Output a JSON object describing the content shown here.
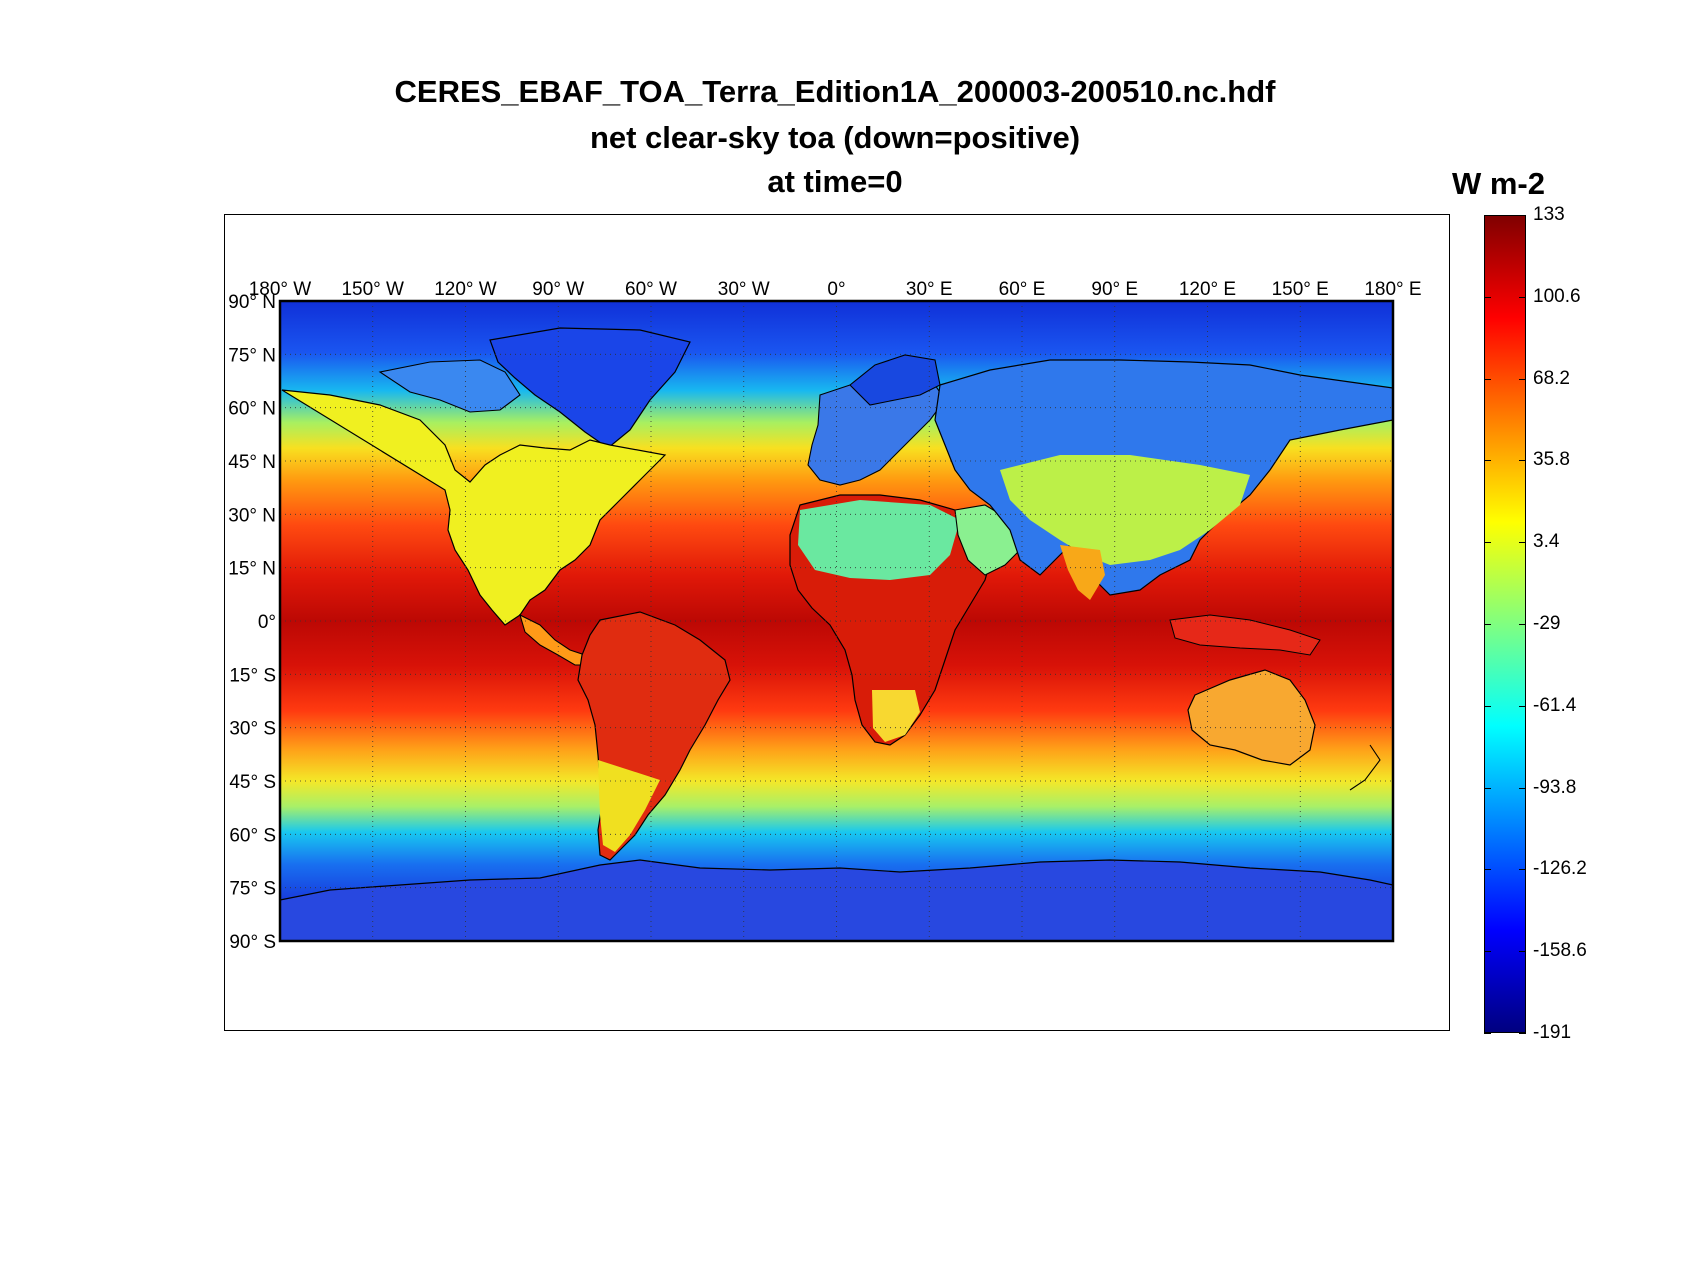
{
  "title": {
    "line1": "CERES_EBAF_TOA_Terra_Edition1A_200003-200510.nc.hdf",
    "line2": "net clear-sky toa (down=positive)",
    "line3": "at time=0"
  },
  "colorbar": {
    "unit": "W m-2",
    "ticks": [
      "133",
      "100.6",
      "68.2",
      "35.8",
      "3.4",
      "-29",
      "-61.4",
      "-93.8",
      "-126.2",
      "-158.6",
      "-191"
    ],
    "min": -191,
    "max": 133,
    "colormap": "jet"
  },
  "map": {
    "projection": "equirectangular",
    "lon_labels": [
      "180° W",
      "150° W",
      "120° W",
      "90° W",
      "60° W",
      "30° W",
      "0°",
      "30° E",
      "60° E",
      "90° E",
      "120° E",
      "150° E",
      "180° E"
    ],
    "lat_labels": [
      "90° N",
      "75° N",
      "60° N",
      "45° N",
      "30° N",
      "15° N",
      "0°",
      "15° S",
      "30° S",
      "45° S",
      "60° S",
      "75° S",
      "90° S"
    ],
    "grid": "dotted",
    "coastlines": true
  },
  "chart_data": {
    "type": "heatmap",
    "title": "CERES_EBAF_TOA_Terra_Edition1A_200003-200510.nc.hdf net clear-sky toa (down=positive) at time=0",
    "units": "W m-2",
    "color_range": [
      -191,
      133
    ],
    "x_range": [
      -180,
      180
    ],
    "y_range": [
      -90,
      90
    ],
    "approx_zonal_profile_lat": [
      90,
      75,
      60,
      45,
      30,
      15,
      0,
      -15,
      -30,
      -45,
      -60,
      -75,
      -90
    ],
    "approx_zonal_profile_value": [
      -150,
      -140,
      -75,
      10,
      60,
      95,
      120,
      105,
      75,
      15,
      -70,
      -150,
      -175
    ]
  }
}
